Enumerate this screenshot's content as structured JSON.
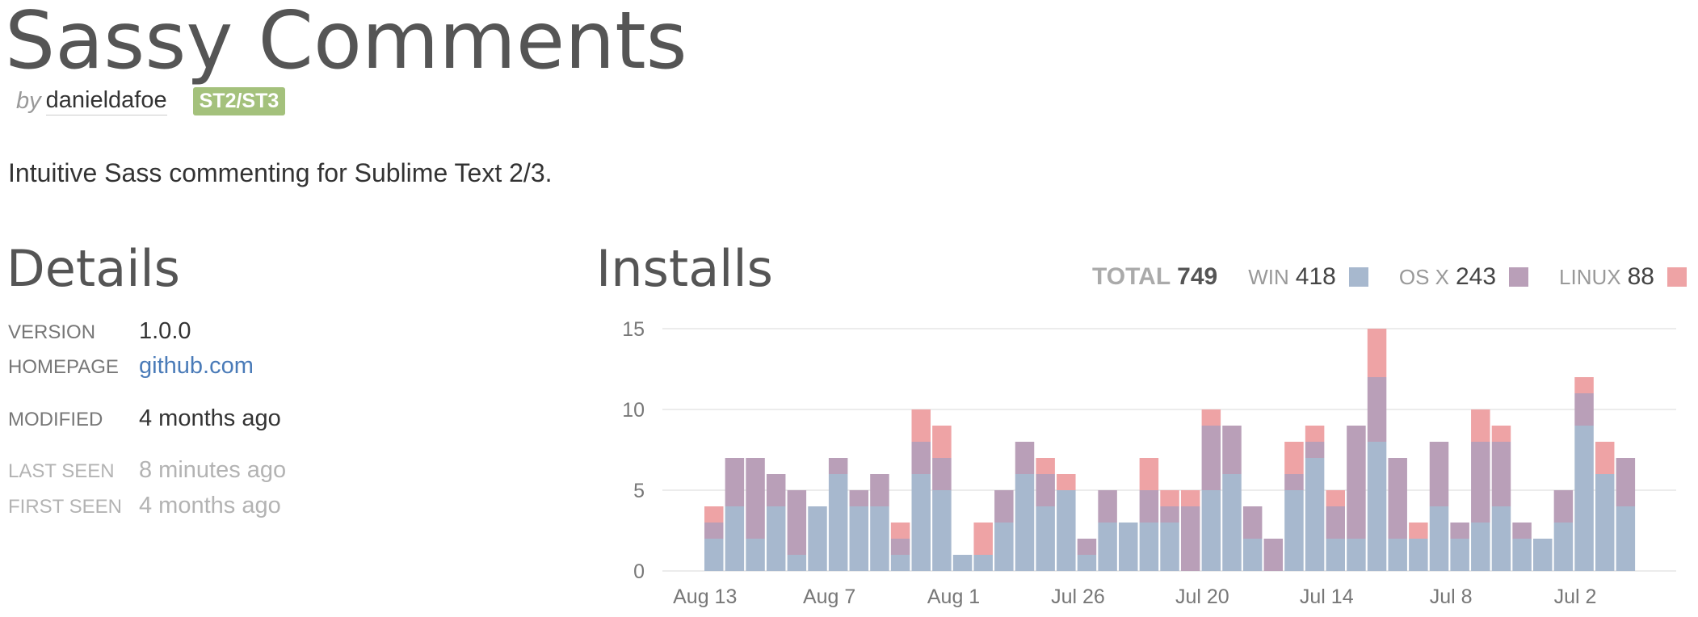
{
  "package": {
    "title": "Sassy Comments",
    "by_label": "by",
    "author": "danieldafoe",
    "badge": "ST2/ST3",
    "description": "Intuitive Sass commenting for Sublime Text 2/3."
  },
  "details": {
    "heading": "Details",
    "version_label": "VERSION",
    "version": "1.0.0",
    "homepage_label": "HOMEPAGE",
    "homepage": "github.com",
    "modified_label": "MODIFIED",
    "modified": "4 months ago",
    "last_seen_label": "LAST SEEN",
    "last_seen": "8 minutes ago",
    "first_seen_label": "FIRST SEEN",
    "first_seen": "4 months ago"
  },
  "installs": {
    "heading": "Installs",
    "total_label": "TOTAL",
    "total": "749",
    "win_label": "WIN",
    "win": "418",
    "osx_label": "OS X",
    "osx": "243",
    "linux_label": "LINUX",
    "linux": "88"
  },
  "colors": {
    "win": "#a7b8ce",
    "osx": "#b99fb8",
    "linux": "#eea3a5",
    "grid": "#e6e6e6",
    "tick": "#777777"
  },
  "chart_data": {
    "type": "bar",
    "stacked": true,
    "ylim": [
      0,
      15
    ],
    "yticks": [
      0,
      5,
      10,
      15
    ],
    "grid": true,
    "xtick_labels": [
      {
        "label": "Aug 13",
        "index": 0
      },
      {
        "label": "Aug 7",
        "index": 6
      },
      {
        "label": "Aug 1",
        "index": 12
      },
      {
        "label": "Jul 26",
        "index": 18
      },
      {
        "label": "Jul 20",
        "index": 24
      },
      {
        "label": "Jul 14",
        "index": 30
      },
      {
        "label": "Jul 8",
        "index": 36
      },
      {
        "label": "Jul 2",
        "index": 42
      }
    ],
    "series": [
      {
        "name": "WIN",
        "values": [
          2,
          4,
          2,
          4,
          1,
          4,
          6,
          4,
          4,
          1,
          6,
          5,
          1,
          1,
          3,
          6,
          4,
          5,
          1,
          3,
          3,
          3,
          3,
          0,
          5,
          6,
          2,
          0,
          5,
          7,
          2,
          2,
          8,
          2,
          2,
          4,
          2,
          3,
          4,
          2,
          2,
          3,
          9,
          6,
          4
        ]
      },
      {
        "name": "OS X",
        "values": [
          1,
          3,
          5,
          2,
          4,
          0,
          1,
          1,
          2,
          1,
          2,
          2,
          0,
          0,
          2,
          2,
          2,
          0,
          1,
          2,
          0,
          2,
          1,
          4,
          4,
          3,
          2,
          2,
          1,
          1,
          2,
          7,
          4,
          5,
          0,
          4,
          1,
          5,
          4,
          1,
          0,
          2,
          2,
          0,
          3
        ]
      },
      {
        "name": "LINUX",
        "values": [
          1,
          0,
          0,
          0,
          0,
          0,
          0,
          0,
          0,
          1,
          2,
          2,
          0,
          2,
          0,
          0,
          1,
          1,
          0,
          0,
          0,
          2,
          1,
          1,
          1,
          0,
          0,
          0,
          2,
          1,
          1,
          0,
          3,
          0,
          1,
          0,
          0,
          2,
          1,
          0,
          0,
          0,
          1,
          2,
          0
        ]
      }
    ]
  }
}
